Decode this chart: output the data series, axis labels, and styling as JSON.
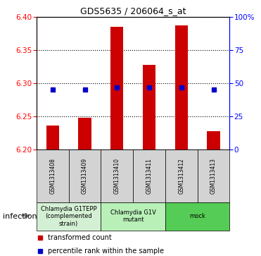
{
  "title": "GDS5635 / 206064_s_at",
  "samples": [
    "GSM1313408",
    "GSM1313409",
    "GSM1313410",
    "GSM1313411",
    "GSM1313412",
    "GSM1313413"
  ],
  "transformed_counts": [
    6.236,
    6.248,
    6.385,
    6.328,
    6.387,
    6.228
  ],
  "percentile_ranks": [
    45,
    45,
    47,
    47,
    47,
    45
  ],
  "ylim_left": [
    6.2,
    6.4
  ],
  "ylim_right": [
    0,
    100
  ],
  "yticks_left": [
    6.2,
    6.25,
    6.3,
    6.35,
    6.4
  ],
  "yticks_right": [
    0,
    25,
    50,
    75,
    100
  ],
  "bar_bottom": 6.2,
  "bar_color": "#cc0000",
  "dot_color": "#0000cc",
  "groups": [
    {
      "label": "Chlamydia G1TEPP\n(complemented\nstrain)",
      "indices": [
        0,
        1
      ],
      "color": "#d4f0d4"
    },
    {
      "label": "Chlamydia G1V\nmutant",
      "indices": [
        2,
        3
      ],
      "color": "#b8f0b8"
    },
    {
      "label": "mock",
      "indices": [
        4,
        5
      ],
      "color": "#55cc55"
    }
  ],
  "infection_label": "infection",
  "legend_items": [
    {
      "label": "transformed count",
      "color": "#cc0000"
    },
    {
      "label": "percentile rank within the sample",
      "color": "#0000cc"
    }
  ],
  "bar_width": 0.4,
  "title_fontsize": 9,
  "tick_fontsize": 7.5,
  "sample_fontsize": 5.5,
  "group_fontsize": 6,
  "legend_fontsize": 7
}
